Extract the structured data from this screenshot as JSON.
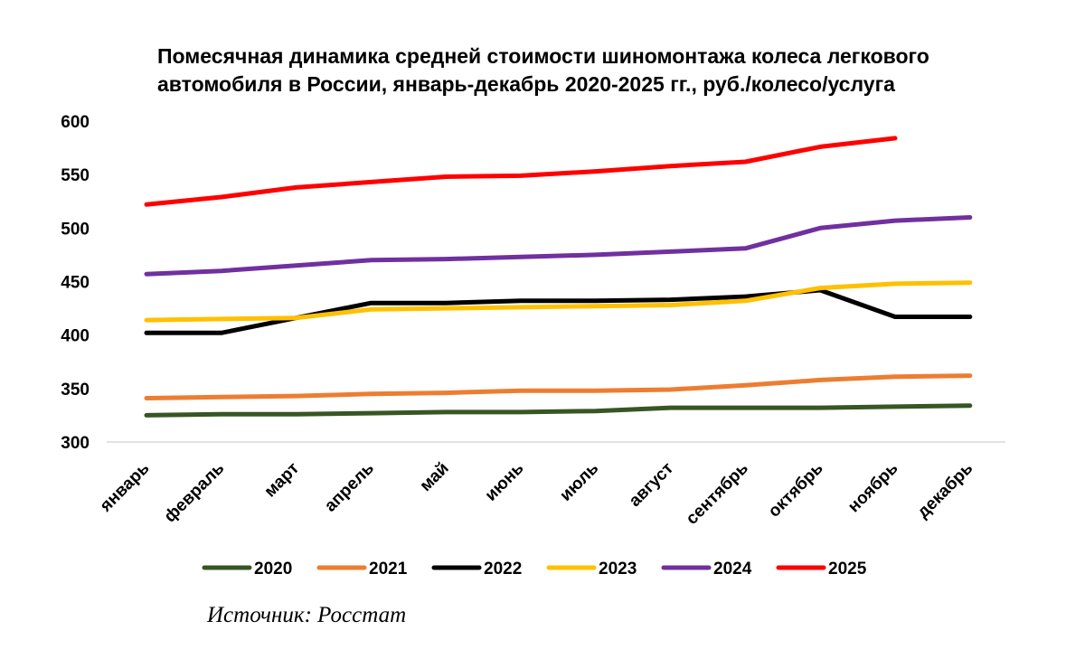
{
  "chart_data": {
    "type": "line",
    "title_lines": [
      "Помесячная динамика средней стоимости шиномонтажа колеса легкового",
      "автомобиля в России, январь-декабрь 2020-2025 гг., руб./колесо/услуга"
    ],
    "categories": [
      "январь",
      "февраль",
      "март",
      "апрель",
      "май",
      "июнь",
      "июль",
      "август",
      "сентябрь",
      "октябрь",
      "ноябрь",
      "декабрь"
    ],
    "ylim": [
      300,
      600
    ],
    "yticks": [
      "300",
      "350",
      "400",
      "450",
      "500",
      "550",
      "600"
    ],
    "grid": false,
    "legend_position": "bottom",
    "series": [
      {
        "name": "2020",
        "color": "#375623",
        "values": [
          325,
          326,
          326,
          327,
          328,
          328,
          329,
          332,
          332,
          332,
          333,
          334
        ]
      },
      {
        "name": "2021",
        "color": "#ED7D31",
        "values": [
          341,
          342,
          343,
          345,
          346,
          348,
          348,
          349,
          353,
          358,
          361,
          362
        ]
      },
      {
        "name": "2022",
        "color": "#000000",
        "values": [
          402,
          402,
          416,
          430,
          430,
          432,
          432,
          433,
          436,
          442,
          417,
          417
        ]
      },
      {
        "name": "2023",
        "color": "#FFC000",
        "values": [
          414,
          415,
          416,
          424,
          425,
          426,
          427,
          428,
          432,
          444,
          448,
          449
        ]
      },
      {
        "name": "2024",
        "color": "#7030A0",
        "values": [
          457,
          460,
          465,
          470,
          471,
          473,
          475,
          478,
          481,
          500,
          507,
          510
        ]
      },
      {
        "name": "2025",
        "color": "#FF0000",
        "values": [
          522,
          529,
          538,
          543,
          548,
          549,
          553,
          558,
          562,
          576,
          584,
          null
        ]
      }
    ]
  },
  "source": "Источник: Росстат"
}
